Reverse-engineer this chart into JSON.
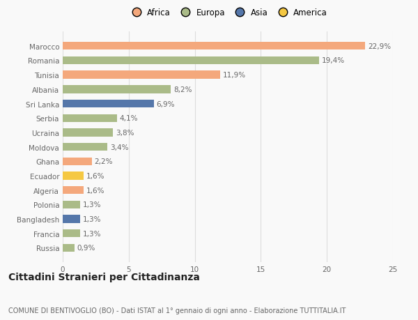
{
  "countries": [
    "Marocco",
    "Romania",
    "Tunisia",
    "Albania",
    "Sri Lanka",
    "Serbia",
    "Ucraina",
    "Moldova",
    "Ghana",
    "Ecuador",
    "Algeria",
    "Polonia",
    "Bangladesh",
    "Francia",
    "Russia"
  ],
  "values": [
    22.9,
    19.4,
    11.9,
    8.2,
    6.9,
    4.1,
    3.8,
    3.4,
    2.2,
    1.6,
    1.6,
    1.3,
    1.3,
    1.3,
    0.9
  ],
  "labels": [
    "22,9%",
    "19,4%",
    "11,9%",
    "8,2%",
    "6,9%",
    "4,1%",
    "3,8%",
    "3,4%",
    "2,2%",
    "1,6%",
    "1,6%",
    "1,3%",
    "1,3%",
    "1,3%",
    "0,9%"
  ],
  "continents": [
    "Africa",
    "Europa",
    "Africa",
    "Europa",
    "Asia",
    "Europa",
    "Europa",
    "Europa",
    "Africa",
    "America",
    "Africa",
    "Europa",
    "Asia",
    "Europa",
    "Europa"
  ],
  "colors": {
    "Africa": "#F4A87C",
    "Europa": "#AABB88",
    "Asia": "#5577AA",
    "America": "#F5C842"
  },
  "xlim": [
    0,
    25
  ],
  "xticks": [
    0,
    5,
    10,
    15,
    20,
    25
  ],
  "title": "Cittadini Stranieri per Cittadinanza",
  "subtitle": "COMUNE DI BENTIVOGLIO (BO) - Dati ISTAT al 1° gennaio di ogni anno - Elaborazione TUTTITALIA.IT",
  "background_color": "#f9f9f9",
  "bar_height": 0.55,
  "grid_color": "#dddddd",
  "text_color": "#666666",
  "label_fontsize": 7.5,
  "tick_fontsize": 7.5,
  "title_fontsize": 10,
  "subtitle_fontsize": 7.0,
  "legend_order": [
    "Africa",
    "Europa",
    "Asia",
    "America"
  ]
}
